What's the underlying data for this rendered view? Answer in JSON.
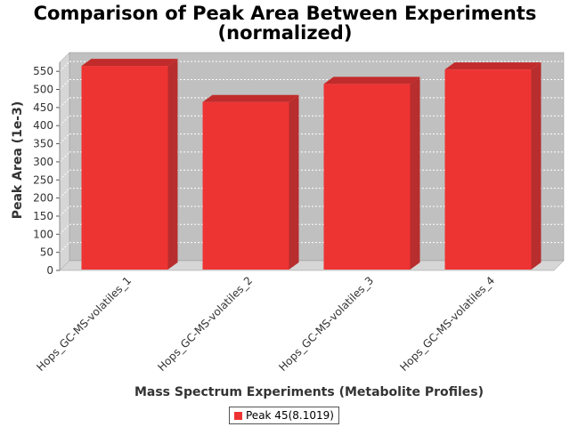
{
  "chart_data": {
    "type": "bar",
    "title_line1": "Comparison of Peak Area Between Experiments",
    "title_line2": "(normalized)",
    "xlabel": "Mass Spectrum Experiments (Metabolite Profiles)",
    "ylabel": "Peak Area (1e-3)",
    "categories": [
      "Hops_GC-MS-volatiles_1",
      "Hops_GC-MS-volatiles_2",
      "Hops_GC-MS-volatiles_3",
      "Hops_GC-MS-volatiles_4"
    ],
    "series": [
      {
        "name": "Peak 45(8.1019)",
        "values": [
          565,
          465,
          515,
          555
        ]
      }
    ],
    "ylim": [
      0,
      575
    ],
    "yticks": [
      0,
      50,
      100,
      150,
      200,
      250,
      300,
      350,
      400,
      450,
      500,
      550
    ],
    "grid": true,
    "legend_position": "bottom-center",
    "colors": {
      "bar_front": "#ee3333",
      "bar_side": "#b82d2d",
      "bar_top": "#c22b2b",
      "plot_background": "#c0c0c0",
      "plot_wall": "#d6d6d6",
      "gridline": "#ffffff"
    }
  }
}
